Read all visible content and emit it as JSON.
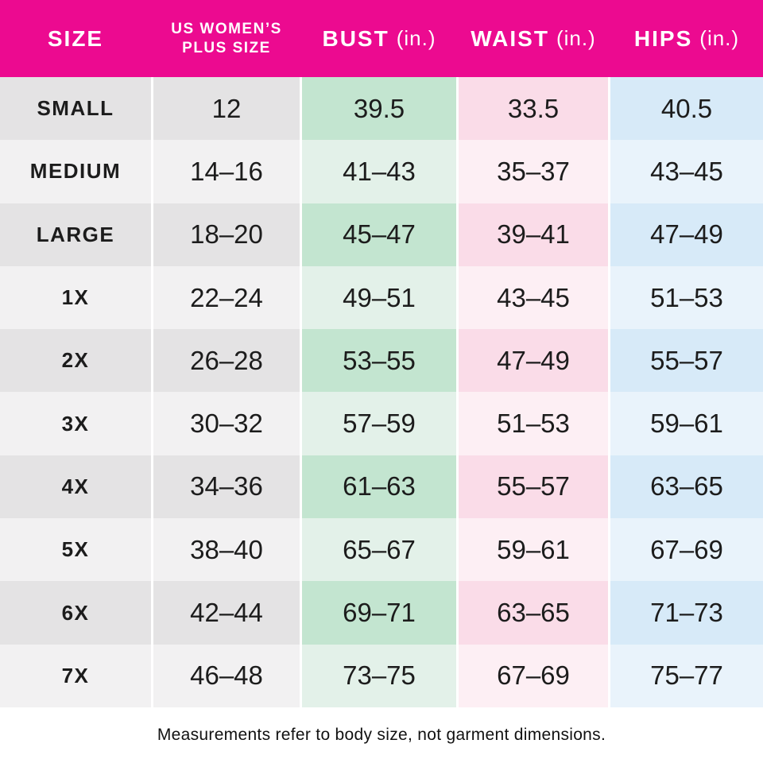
{
  "table": {
    "header": [
      {
        "label": "SIZE",
        "unit": ""
      },
      {
        "label": "US WOMEN’S PLUS SIZE",
        "unit": ""
      },
      {
        "label": "BUST",
        "unit": "(in.)"
      },
      {
        "label": "WAIST",
        "unit": "(in.)"
      },
      {
        "label": "HIPS",
        "unit": "(in.)"
      }
    ],
    "rows": [
      {
        "size": "SMALL",
        "us": "12",
        "bust": "39.5",
        "waist": "33.5",
        "hips": "40.5"
      },
      {
        "size": "MEDIUM",
        "us": "14–16",
        "bust": "41–43",
        "waist": "35–37",
        "hips": "43–45"
      },
      {
        "size": "LARGE",
        "us": "18–20",
        "bust": "45–47",
        "waist": "39–41",
        "hips": "47–49"
      },
      {
        "size": "1X",
        "us": "22–24",
        "bust": "49–51",
        "waist": "43–45",
        "hips": "51–53"
      },
      {
        "size": "2X",
        "us": "26–28",
        "bust": "53–55",
        "waist": "47–49",
        "hips": "55–57"
      },
      {
        "size": "3X",
        "us": "30–32",
        "bust": "57–59",
        "waist": "51–53",
        "hips": "59–61"
      },
      {
        "size": "4X",
        "us": "34–36",
        "bust": "61–63",
        "waist": "55–57",
        "hips": "63–65"
      },
      {
        "size": "5X",
        "us": "38–40",
        "bust": "65–67",
        "waist": "59–61",
        "hips": "67–69"
      },
      {
        "size": "6X",
        "us": "42–44",
        "bust": "69–71",
        "waist": "63–65",
        "hips": "71–73"
      },
      {
        "size": "7X",
        "us": "46–48",
        "bust": "73–75",
        "waist": "67–69",
        "hips": "75–77"
      }
    ]
  },
  "footer": {
    "note": "Measurements refer to body size, not garment dimensions."
  },
  "colors": {
    "header_bg": "#EC0A90",
    "header_text": "#FFFFFF",
    "row_gray_dark": "#E4E3E4",
    "row_gray_light": "#F2F1F2",
    "bust_green_dark": "#C3E5D0",
    "bust_green_light": "#E3F1E9",
    "waist_pink_dark": "#FADCE8",
    "waist_pink_light": "#FDEFF4",
    "hips_blue_dark": "#D7EAF8",
    "hips_blue_light": "#E9F3FB",
    "body_text": "#1C1C1C"
  },
  "chart_data": {
    "type": "table",
    "title": "",
    "columns": [
      "SIZE",
      "US WOMEN’S PLUS SIZE",
      "BUST (in.)",
      "WAIST (in.)",
      "HIPS (in.)"
    ],
    "rows": [
      [
        "SMALL",
        "12",
        "39.5",
        "33.5",
        "40.5"
      ],
      [
        "MEDIUM",
        "14–16",
        "41–43",
        "35–37",
        "43–45"
      ],
      [
        "LARGE",
        "18–20",
        "45–47",
        "39–41",
        "47–49"
      ],
      [
        "1X",
        "22–24",
        "49–51",
        "43–45",
        "51–53"
      ],
      [
        "2X",
        "26–28",
        "53–55",
        "47–49",
        "55–57"
      ],
      [
        "3X",
        "30–32",
        "57–59",
        "51–53",
        "59–61"
      ],
      [
        "4X",
        "34–36",
        "61–63",
        "55–57",
        "63–65"
      ],
      [
        "5X",
        "38–40",
        "65–67",
        "59–61",
        "67–69"
      ],
      [
        "6X",
        "42–44",
        "69–71",
        "63–65",
        "71–73"
      ],
      [
        "7X",
        "46–48",
        "73–75",
        "67–69",
        "75–77"
      ]
    ],
    "footnote": "Measurements refer to body size, not garment dimensions."
  }
}
